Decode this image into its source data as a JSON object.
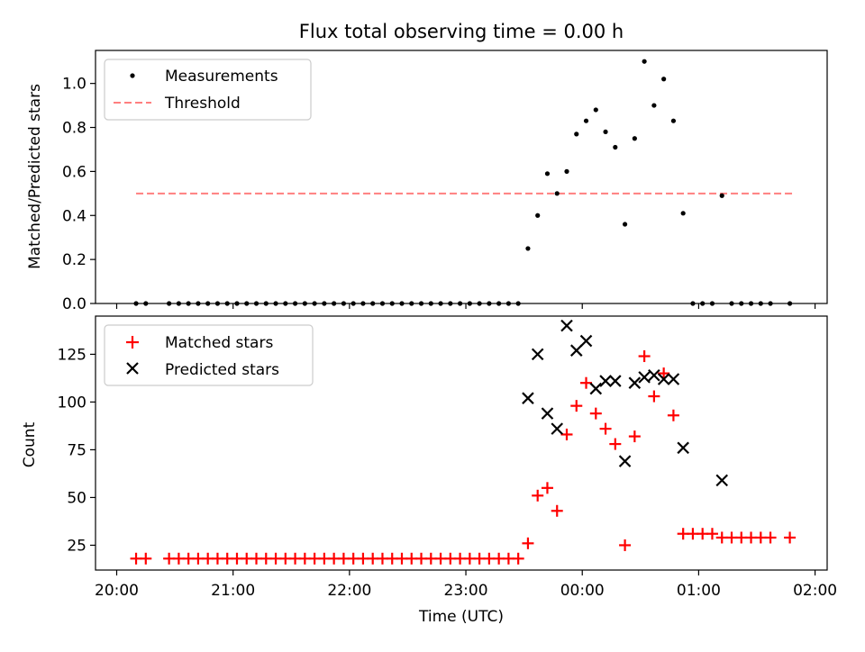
{
  "figure": {
    "title": "Flux total observing time = 0.00 h",
    "xlabel": "Time (UTC)"
  },
  "colors": {
    "measurements": "#000000",
    "threshold": "#ff7f7f",
    "matched": "#ff0000",
    "predicted": "#000000"
  },
  "chart_data": [
    {
      "type": "scatter",
      "ylabel": "Matched/Predicted stars",
      "ylim": [
        0,
        1.15
      ],
      "yticks": [
        0.0,
        0.2,
        0.4,
        0.6,
        0.8,
        1.0
      ],
      "ytick_labels": [
        "0.0",
        "0.2",
        "0.4",
        "0.6",
        "0.8",
        "1.0"
      ],
      "xlim": [
        "20:00",
        "02:00"
      ],
      "xticks": [
        "20:00",
        "21:00",
        "22:00",
        "23:00",
        "00:00",
        "01:00",
        "02:00"
      ],
      "legend": {
        "placement": "upper-left",
        "entries": [
          {
            "key": "measurements",
            "label": "Measurements",
            "marker": "dot"
          },
          {
            "key": "threshold",
            "label": "Threshold",
            "marker": "dashed-line"
          }
        ]
      },
      "threshold": {
        "name": "Threshold",
        "y": 0.5,
        "x_start": "20:10",
        "x_end": "01:50"
      },
      "series": [
        {
          "name": "Measurements",
          "marker": "dot",
          "x": [
            "20:10",
            "20:15",
            "20:27",
            "20:32",
            "20:37",
            "20:42",
            "20:47",
            "20:52",
            "20:57",
            "21:02",
            "21:07",
            "21:12",
            "21:17",
            "21:22",
            "21:27",
            "21:32",
            "21:37",
            "21:42",
            "21:47",
            "21:52",
            "21:57",
            "22:02",
            "22:07",
            "22:12",
            "22:17",
            "22:22",
            "22:27",
            "22:32",
            "22:37",
            "22:42",
            "22:47",
            "22:52",
            "22:57",
            "23:02",
            "23:07",
            "23:12",
            "23:17",
            "23:22",
            "23:27",
            "23:32",
            "23:37",
            "23:42",
            "23:47",
            "23:52",
            "23:57",
            "00:02",
            "00:07",
            "00:12",
            "00:17",
            "00:22",
            "00:27",
            "00:32",
            "00:37",
            "00:42",
            "00:47",
            "00:52",
            "00:57",
            "01:02",
            "01:07",
            "01:12",
            "01:17",
            "01:22",
            "01:27",
            "01:32",
            "01:37",
            "01:47"
          ],
          "y": [
            0,
            0,
            0,
            0,
            0,
            0,
            0,
            0,
            0,
            0,
            0,
            0,
            0,
            0,
            0,
            0,
            0,
            0,
            0,
            0,
            0,
            0,
            0,
            0,
            0,
            0,
            0,
            0,
            0,
            0,
            0,
            0,
            0,
            0,
            0,
            0,
            0,
            0,
            0,
            0.25,
            0.4,
            0.59,
            0.5,
            0.6,
            0.77,
            0.83,
            0.88,
            0.78,
            0.71,
            0.36,
            0.75,
            1.1,
            0.9,
            1.02,
            0.83,
            0.41,
            0,
            0,
            0,
            0.49,
            0,
            0,
            0,
            0,
            0,
            0
          ]
        }
      ]
    },
    {
      "type": "scatter",
      "ylabel": "Count",
      "ylim": [
        12,
        145
      ],
      "yticks": [
        25,
        50,
        75,
        100,
        125
      ],
      "ytick_labels": [
        "25",
        "50",
        "75",
        "100",
        "125"
      ],
      "xlim": [
        "20:00",
        "02:00"
      ],
      "xticks": [
        "20:00",
        "21:00",
        "22:00",
        "23:00",
        "00:00",
        "01:00",
        "02:00"
      ],
      "xtick_labels": [
        "20:00",
        "21:00",
        "22:00",
        "23:00",
        "00:00",
        "01:00",
        "02:00"
      ],
      "legend": {
        "placement": "upper-left",
        "entries": [
          {
            "key": "matched",
            "label": "Matched stars",
            "marker": "plus"
          },
          {
            "key": "predicted",
            "label": "Predicted stars",
            "marker": "x"
          }
        ]
      },
      "series": [
        {
          "name": "Matched stars",
          "marker": "plus",
          "x": [
            "20:10",
            "20:15",
            "20:27",
            "20:32",
            "20:37",
            "20:42",
            "20:47",
            "20:52",
            "20:57",
            "21:02",
            "21:07",
            "21:12",
            "21:17",
            "21:22",
            "21:27",
            "21:32",
            "21:37",
            "21:42",
            "21:47",
            "21:52",
            "21:57",
            "22:02",
            "22:07",
            "22:12",
            "22:17",
            "22:22",
            "22:27",
            "22:32",
            "22:37",
            "22:42",
            "22:47",
            "22:52",
            "22:57",
            "23:02",
            "23:07",
            "23:12",
            "23:17",
            "23:22",
            "23:27",
            "23:32",
            "23:37",
            "23:42",
            "23:47",
            "23:52",
            "23:57",
            "00:02",
            "00:07",
            "00:12",
            "00:17",
            "00:22",
            "00:27",
            "00:32",
            "00:37",
            "00:42",
            "00:47",
            "00:52",
            "00:57",
            "01:02",
            "01:07",
            "01:12",
            "01:17",
            "01:22",
            "01:27",
            "01:32",
            "01:37",
            "01:47"
          ],
          "y": [
            18,
            18,
            18,
            18,
            18,
            18,
            18,
            18,
            18,
            18,
            18,
            18,
            18,
            18,
            18,
            18,
            18,
            18,
            18,
            18,
            18,
            18,
            18,
            18,
            18,
            18,
            18,
            18,
            18,
            18,
            18,
            18,
            18,
            18,
            18,
            18,
            18,
            18,
            18,
            26,
            51,
            55,
            43,
            83,
            98,
            110,
            94,
            86,
            78,
            25,
            82,
            124,
            103,
            115,
            93,
            31,
            31,
            31,
            31,
            29,
            29,
            29,
            29,
            29,
            29,
            29
          ]
        },
        {
          "name": "Predicted stars",
          "marker": "x",
          "x": [
            "23:32",
            "23:37",
            "23:42",
            "23:47",
            "23:52",
            "23:57",
            "00:02",
            "00:07",
            "00:12",
            "00:17",
            "00:22",
            "00:27",
            "00:32",
            "00:37",
            "00:42",
            "00:47",
            "00:52",
            "01:12"
          ],
          "y": [
            102,
            125,
            94,
            86,
            140,
            127,
            132,
            107,
            111,
            111,
            69,
            110,
            113,
            114,
            112,
            112,
            76,
            59
          ]
        }
      ]
    }
  ]
}
